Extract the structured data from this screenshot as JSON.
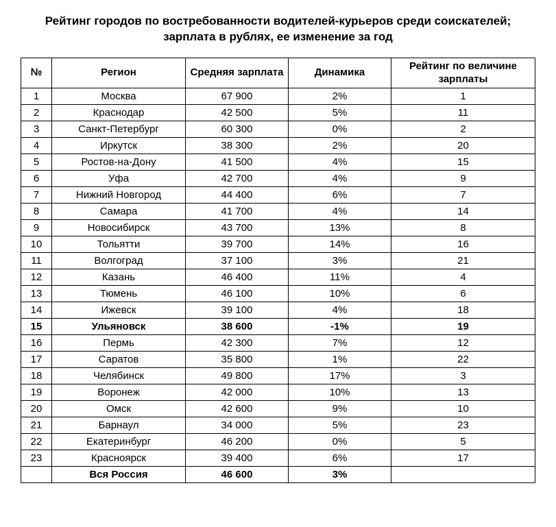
{
  "title_line1": "Рейтинг городов по востребованности водителей-курьеров среди соискателей;",
  "title_line2": "зарплата в рублях, ее изменение за год",
  "table": {
    "columns": {
      "rank": "№",
      "region": "Регион",
      "salary": "Средняя зарплата",
      "dynamics": "Динамика",
      "salaryrank": "Рейтинг по величине зарплаты"
    },
    "rows": [
      {
        "rank": "1",
        "region": "Москва",
        "salary": "67 900",
        "dynamics": "2%",
        "salaryrank": "1",
        "bold": false
      },
      {
        "rank": "2",
        "region": "Краснодар",
        "salary": "42 500",
        "dynamics": "5%",
        "salaryrank": "11",
        "bold": false
      },
      {
        "rank": "3",
        "region": "Санкт-Петербург",
        "salary": "60 300",
        "dynamics": "0%",
        "salaryrank": "2",
        "bold": false
      },
      {
        "rank": "4",
        "region": "Иркутск",
        "salary": "38 300",
        "dynamics": "2%",
        "salaryrank": "20",
        "bold": false
      },
      {
        "rank": "5",
        "region": "Ростов-на-Дону",
        "salary": "41 500",
        "dynamics": "4%",
        "salaryrank": "15",
        "bold": false
      },
      {
        "rank": "6",
        "region": "Уфа",
        "salary": "42 700",
        "dynamics": "4%",
        "salaryrank": "9",
        "bold": false
      },
      {
        "rank": "7",
        "region": "Нижний Новгород",
        "salary": "44 400",
        "dynamics": "6%",
        "salaryrank": "7",
        "bold": false
      },
      {
        "rank": "8",
        "region": "Самара",
        "salary": "41 700",
        "dynamics": "4%",
        "salaryrank": "14",
        "bold": false
      },
      {
        "rank": "9",
        "region": "Новосибирск",
        "salary": "43 700",
        "dynamics": "13%",
        "salaryrank": "8",
        "bold": false
      },
      {
        "rank": "10",
        "region": "Тольятти",
        "salary": "39 700",
        "dynamics": "14%",
        "salaryrank": "16",
        "bold": false
      },
      {
        "rank": "11",
        "region": "Волгоград",
        "salary": "37 100",
        "dynamics": "3%",
        "salaryrank": "21",
        "bold": false
      },
      {
        "rank": "12",
        "region": "Казань",
        "salary": "46 400",
        "dynamics": "11%",
        "salaryrank": "4",
        "bold": false
      },
      {
        "rank": "13",
        "region": "Тюмень",
        "salary": "46 100",
        "dynamics": "10%",
        "salaryrank": "6",
        "bold": false
      },
      {
        "rank": "14",
        "region": "Ижевск",
        "salary": "39 100",
        "dynamics": "4%",
        "salaryrank": "18",
        "bold": false
      },
      {
        "rank": "15",
        "region": "Ульяновск",
        "salary": "38 600",
        "dynamics": "-1%",
        "salaryrank": "19",
        "bold": true
      },
      {
        "rank": "16",
        "region": "Пермь",
        "salary": "42 300",
        "dynamics": "7%",
        "salaryrank": "12",
        "bold": false
      },
      {
        "rank": "17",
        "region": "Саратов",
        "salary": "35 800",
        "dynamics": "1%",
        "salaryrank": "22",
        "bold": false
      },
      {
        "rank": "18",
        "region": "Челябинск",
        "salary": "49 800",
        "dynamics": "17%",
        "salaryrank": "3",
        "bold": false
      },
      {
        "rank": "19",
        "region": "Воронеж",
        "salary": "42 000",
        "dynamics": "10%",
        "salaryrank": "13",
        "bold": false
      },
      {
        "rank": "20",
        "region": "Омск",
        "salary": "42 600",
        "dynamics": "9%",
        "salaryrank": "10",
        "bold": false
      },
      {
        "rank": "21",
        "region": "Барнаул",
        "salary": "34 000",
        "dynamics": "5%",
        "salaryrank": "23",
        "bold": false
      },
      {
        "rank": "22",
        "region": "Екатеринбург",
        "salary": "46 200",
        "dynamics": "0%",
        "salaryrank": "5",
        "bold": false
      },
      {
        "rank": "23",
        "region": "Красноярск",
        "salary": "39 400",
        "dynamics": "6%",
        "salaryrank": "17",
        "bold": false
      },
      {
        "rank": "",
        "region": "Вся Россия",
        "salary": "46 600",
        "dynamics": "3%",
        "salaryrank": "",
        "bold": true
      }
    ]
  },
  "colors": {
    "text": "#000000",
    "border": "#000000",
    "background": "#ffffff"
  },
  "font": {
    "family": "Arial",
    "title_size_pt": 13,
    "body_size_pt": 11
  }
}
